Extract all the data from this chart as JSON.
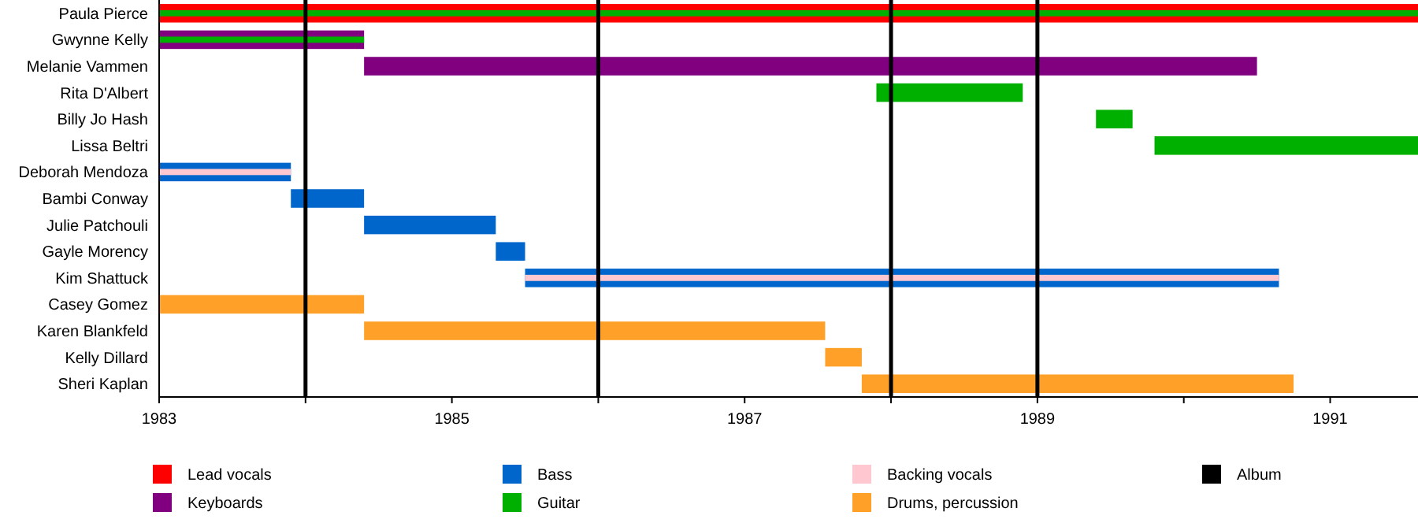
{
  "chart_data": {
    "type": "bar",
    "orientation": "horizontal",
    "categories": [
      "Paula Pierce",
      "Gwynne Kelly",
      "Melanie Vammen",
      "Rita D'Albert",
      "Billy Jo Hash",
      "Lissa Beltri",
      "Deborah Mendoza",
      "Bambi Conway",
      "Julie Patchouli",
      "Gayle Morency",
      "Kim Shattuck",
      "Casey Gomez",
      "Karen Blankfeld",
      "Kelly Dillard",
      "Sheri Kaplan"
    ],
    "series": [
      {
        "name": "Lead vocals",
        "color": "#ff0000",
        "base": [
          1983,
          null,
          null,
          null,
          null,
          null,
          null,
          null,
          null,
          null,
          null,
          null,
          null,
          null,
          null
        ],
        "values": [
          8.6,
          null,
          null,
          null,
          null,
          null,
          null,
          null,
          null,
          null,
          null,
          null,
          null,
          null,
          null
        ]
      },
      {
        "name": "Keyboards",
        "color": "#800080",
        "base": [
          null,
          1983,
          1984.4,
          null,
          null,
          null,
          null,
          null,
          null,
          null,
          null,
          null,
          null,
          null,
          null
        ],
        "values": [
          null,
          1.4,
          6.1,
          null,
          null,
          null,
          null,
          null,
          null,
          null,
          null,
          null,
          null,
          null,
          null
        ]
      },
      {
        "name": "Bass",
        "color": "#0066cc",
        "base": [
          null,
          null,
          null,
          null,
          null,
          null,
          1983,
          1983.9,
          1984.4,
          1985.3,
          1985.5,
          null,
          null,
          null,
          null
        ],
        "values": [
          null,
          null,
          null,
          null,
          null,
          null,
          0.9,
          0.5,
          0.9,
          0.2,
          5.15,
          null,
          null,
          null,
          null
        ]
      },
      {
        "name": "Guitar",
        "color": "#00b000",
        "base": [
          1983,
          1983,
          null,
          1987.9,
          1989.4,
          1989.8,
          null,
          null,
          null,
          null,
          null,
          null,
          null,
          null,
          null
        ],
        "values": [
          8.6,
          1.4,
          null,
          1,
          0.25,
          1.8,
          null,
          null,
          null,
          null,
          null,
          null,
          null,
          null,
          null
        ]
      },
      {
        "name": "Backing vocals",
        "color": "#ffc8d0",
        "base": [
          null,
          null,
          null,
          null,
          null,
          null,
          1983,
          null,
          null,
          null,
          1985.5,
          null,
          null,
          null,
          null
        ],
        "values": [
          null,
          null,
          null,
          null,
          null,
          null,
          0.9,
          null,
          null,
          null,
          5.15,
          null,
          null,
          null,
          null
        ]
      },
      {
        "name": "Drums, percussion",
        "color": "#ffa028",
        "base": [
          null,
          null,
          null,
          null,
          null,
          null,
          null,
          null,
          null,
          null,
          null,
          1983,
          1984.4,
          1987.55,
          1987.8
        ],
        "values": [
          null,
          null,
          null,
          null,
          null,
          null,
          null,
          null,
          null,
          null,
          null,
          1.4,
          3.15,
          0.25,
          2.95
        ]
      }
    ],
    "xlim": [
      1983,
      1991.6
    ],
    "xticks": [
      1983,
      {
        "value": 1984,
        "label": null
      },
      1985,
      {
        "value": 1986,
        "label": null
      },
      1987,
      {
        "value": 1988,
        "label": null
      },
      1989,
      {
        "value": 1990,
        "label": null
      },
      1991
    ],
    "ref_lines": [
      {
        "axis": "x",
        "value": 1984,
        "label": "Album",
        "color": "#000000"
      },
      {
        "axis": "x",
        "value": 1986,
        "label": null,
        "color": "#000000"
      },
      {
        "axis": "x",
        "value": 1988,
        "label": null,
        "color": "#000000"
      },
      {
        "axis": "x",
        "value": 1989,
        "label": null,
        "color": "#000000"
      }
    ],
    "legend": "bottom"
  }
}
